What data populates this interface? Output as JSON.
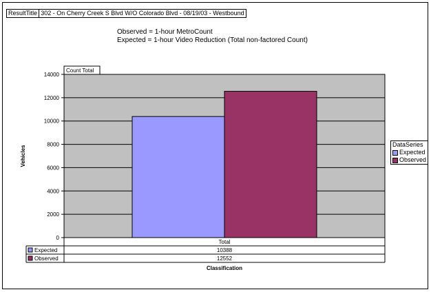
{
  "result_title": {
    "label": "ResultTitle",
    "value": "302 - On Cherry Creek S Blvd W/O Colorado Blvd - 08/19/03 - Westbound"
  },
  "subtitle": {
    "line1": "Observed = 1-hour MetroCount",
    "line2": "Expected = 1-hour Video Reduction (Total non-factored Count)"
  },
  "legend": {
    "title": "DataSeries"
  },
  "colors": {
    "plot_background": "#c0c0c0",
    "expected": "#9999ff",
    "observed": "#993366"
  },
  "chart_data": {
    "type": "bar",
    "title": "Count Total",
    "xlabel": "Classification",
    "ylabel": "Vehicles",
    "categories": [
      "Total"
    ],
    "ylim": [
      0,
      14000
    ],
    "yticks": [
      0,
      2000,
      4000,
      6000,
      8000,
      10000,
      12000,
      14000
    ],
    "grid": true,
    "legend_position": "right",
    "data_table": true,
    "series": [
      {
        "name": "Expected",
        "values": [
          10388
        ]
      },
      {
        "name": "Observed",
        "values": [
          12552
        ]
      }
    ]
  }
}
